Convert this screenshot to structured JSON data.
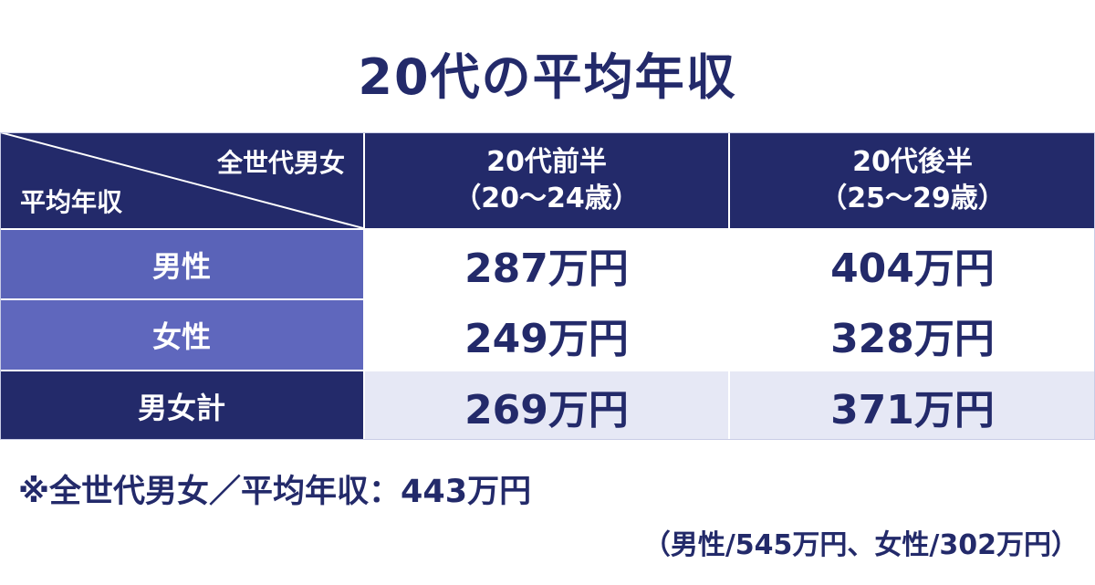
{
  "title": "20代の平均年収",
  "table": {
    "corner": {
      "top": "全世代男女",
      "bottom": "平均年収"
    },
    "columns": [
      {
        "line1": "20代前半",
        "line2": "（20～24歳）"
      },
      {
        "line1": "20代後半",
        "line2": "（25～29歳）"
      }
    ],
    "rows": [
      [
        "男性",
        "287万円",
        "404万円"
      ],
      [
        "女性",
        "249万円",
        "328万円"
      ],
      [
        "男女計",
        "269万円",
        "371万円"
      ]
    ]
  },
  "notes": [
    "※全世代男女／平均年収：443万円",
    "（男性/545万円、女性/302万円）"
  ]
}
